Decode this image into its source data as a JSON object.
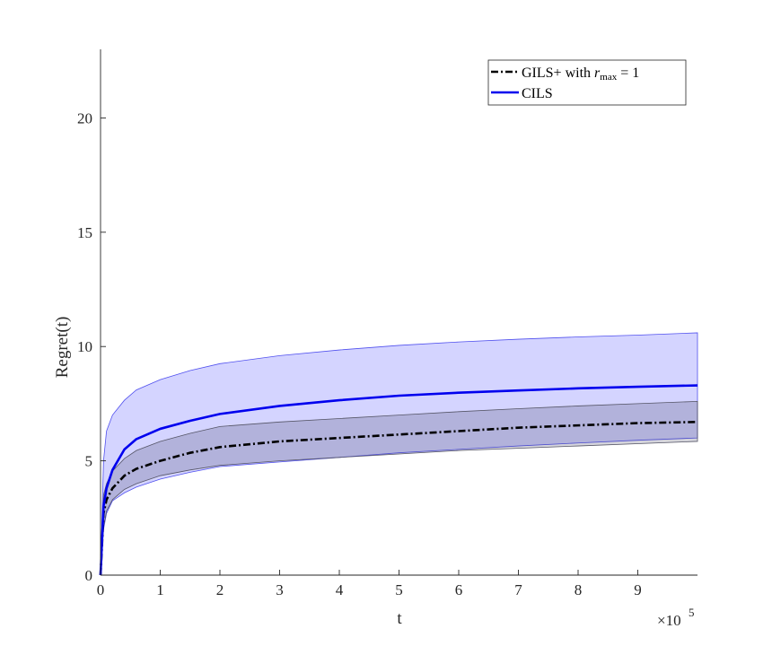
{
  "chart_data": {
    "type": "line",
    "title": "",
    "xlabel": "t",
    "ylabel": "Regret(t)",
    "x_exponent_label": "×10",
    "x_exponent_power": "5",
    "xlim": [
      0,
      1000000
    ],
    "ylim": [
      0,
      23
    ],
    "x_ticks": [
      0,
      100000,
      200000,
      300000,
      400000,
      500000,
      600000,
      700000,
      800000,
      900000
    ],
    "x_tick_labels": [
      "0",
      "1",
      "2",
      "3",
      "4",
      "5",
      "6",
      "7",
      "8",
      "9"
    ],
    "y_ticks": [
      0,
      5,
      10,
      15,
      20
    ],
    "y_tick_labels": [
      "0",
      "5",
      "10",
      "15",
      "20"
    ],
    "grid": false,
    "legend_position": "top-right",
    "x": [
      0,
      5000,
      10000,
      20000,
      40000,
      60000,
      100000,
      150000,
      200000,
      300000,
      400000,
      500000,
      600000,
      700000,
      800000,
      900000,
      1000000
    ],
    "series": [
      {
        "name": "GILS+ with r_max = 1",
        "legend_main": "GILS+ with ",
        "legend_var": "r",
        "legend_sub": "max",
        "legend_tail": " = 1",
        "color": "#000000",
        "line_style": "dash-dot",
        "band_color": "#a0a0b4",
        "values": [
          0,
          2.7,
          3.3,
          3.8,
          4.35,
          4.65,
          5.0,
          5.35,
          5.6,
          5.85,
          6.0,
          6.15,
          6.3,
          6.45,
          6.55,
          6.65,
          6.7
        ],
        "upper": [
          0,
          3.5,
          4.0,
          4.55,
          5.1,
          5.45,
          5.85,
          6.2,
          6.5,
          6.7,
          6.85,
          7.0,
          7.15,
          7.28,
          7.4,
          7.5,
          7.6
        ],
        "lower": [
          0,
          2.1,
          2.8,
          3.3,
          3.75,
          4.0,
          4.35,
          4.6,
          4.8,
          5.0,
          5.15,
          5.3,
          5.45,
          5.55,
          5.65,
          5.75,
          5.85
        ]
      },
      {
        "name": "CILS",
        "legend_main": "CILS",
        "color": "#0000ee",
        "line_style": "solid",
        "band_color": "#c8c8f4",
        "values": [
          0,
          3.0,
          3.8,
          4.6,
          5.5,
          5.95,
          6.4,
          6.75,
          7.05,
          7.4,
          7.65,
          7.85,
          7.98,
          8.08,
          8.17,
          8.24,
          8.3
        ],
        "upper": [
          0,
          5.0,
          6.3,
          7.0,
          7.65,
          8.1,
          8.55,
          8.95,
          9.25,
          9.6,
          9.85,
          10.05,
          10.2,
          10.32,
          10.42,
          10.5,
          10.6
        ],
        "lower": [
          0,
          2.0,
          2.7,
          3.25,
          3.6,
          3.85,
          4.2,
          4.5,
          4.75,
          4.95,
          5.15,
          5.35,
          5.5,
          5.65,
          5.78,
          5.9,
          6.0
        ]
      }
    ]
  }
}
